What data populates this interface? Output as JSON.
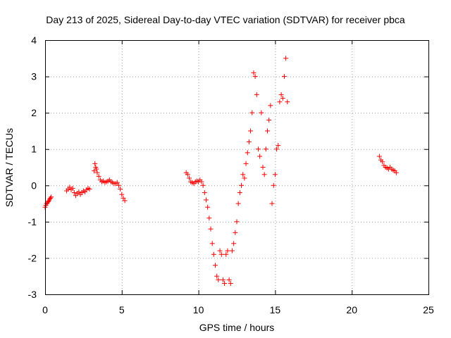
{
  "chart_data": {
    "type": "scatter",
    "title": "Day 213 of 2025, Sidereal Day-to-day VTEC variation (SDTVAR) for receiver pbca",
    "xlabel": "GPS time / hours",
    "ylabel": "SDTVAR / TECUs",
    "xlim": [
      0,
      25
    ],
    "ylim": [
      -3,
      4
    ],
    "xticks": [
      0,
      5,
      10,
      15,
      20,
      25
    ],
    "yticks": [
      -3,
      -2,
      -1,
      0,
      1,
      2,
      3,
      4
    ],
    "xtick_labels": [
      "0",
      "5",
      "10",
      "15",
      "20",
      "25"
    ],
    "ytick_labels": [
      "-3",
      "-2",
      "-1",
      "0",
      "1",
      "2",
      "3",
      "4"
    ],
    "grid": true,
    "marker": "+",
    "color": "#ff0000",
    "series": [
      {
        "name": "SDTVAR",
        "x": [
          0.0,
          0.05,
          0.1,
          0.15,
          0.2,
          0.25,
          0.3,
          0.35,
          0.4,
          1.4,
          1.5,
          1.6,
          1.7,
          1.8,
          1.9,
          2.0,
          2.1,
          2.2,
          2.3,
          2.4,
          2.5,
          2.6,
          2.7,
          2.8,
          2.9,
          3.2,
          3.25,
          3.3,
          3.35,
          3.4,
          3.5,
          3.6,
          3.7,
          3.8,
          3.9,
          4.0,
          4.1,
          4.2,
          4.3,
          4.4,
          4.5,
          4.6,
          4.7,
          4.8,
          4.9,
          5.0,
          5.1,
          5.2,
          9.2,
          9.3,
          9.4,
          9.5,
          9.6,
          9.7,
          9.8,
          9.9,
          10.0,
          10.1,
          10.2,
          10.3,
          10.4,
          10.5,
          10.6,
          10.7,
          10.8,
          10.9,
          11.0,
          11.1,
          11.2,
          11.3,
          11.4,
          11.5,
          11.6,
          11.7,
          11.8,
          11.9,
          12.0,
          12.1,
          12.2,
          12.3,
          12.4,
          12.5,
          12.6,
          12.7,
          12.8,
          12.9,
          13.0,
          13.1,
          13.2,
          13.3,
          13.4,
          13.5,
          13.6,
          13.7,
          13.8,
          13.9,
          14.0,
          14.1,
          14.2,
          14.3,
          14.4,
          14.5,
          14.6,
          14.7,
          14.8,
          14.9,
          15.0,
          15.1,
          15.2,
          15.3,
          15.4,
          15.5,
          15.6,
          15.7,
          15.8,
          21.8,
          21.9,
          22.0,
          22.1,
          22.2,
          22.3,
          22.4,
          22.5,
          22.6,
          22.7,
          22.8,
          22.9
        ],
        "y": [
          -0.6,
          -0.55,
          -0.5,
          -0.48,
          -0.45,
          -0.42,
          -0.38,
          -0.35,
          -0.32,
          -0.15,
          -0.1,
          -0.05,
          -0.12,
          -0.08,
          -0.2,
          -0.28,
          -0.22,
          -0.18,
          -0.25,
          -0.2,
          -0.15,
          -0.18,
          -0.12,
          -0.08,
          -0.1,
          0.4,
          0.6,
          0.5,
          0.45,
          0.35,
          0.25,
          0.15,
          0.1,
          0.12,
          0.08,
          0.1,
          0.12,
          0.15,
          0.1,
          0.08,
          0.05,
          0.05,
          0.08,
          0.0,
          -0.1,
          -0.25,
          -0.35,
          -0.42,
          0.35,
          0.3,
          0.2,
          0.1,
          0.08,
          0.05,
          0.1,
          0.12,
          0.1,
          0.15,
          0.1,
          0.0,
          -0.2,
          -0.4,
          -0.6,
          -0.9,
          -1.2,
          -1.6,
          -1.9,
          -2.2,
          -2.5,
          -2.6,
          -1.8,
          -1.9,
          -2.6,
          -2.7,
          -1.9,
          -1.8,
          -2.6,
          -2.7,
          -1.8,
          -1.6,
          -1.3,
          -1.0,
          -0.5,
          -0.2,
          0.0,
          0.3,
          0.2,
          0.6,
          0.9,
          1.2,
          1.5,
          2.0,
          3.1,
          3.0,
          2.5,
          1.0,
          0.8,
          2.0,
          0.5,
          0.3,
          1.0,
          1.5,
          1.8,
          2.2,
          -0.5,
          0.0,
          0.3,
          1.0,
          1.1,
          2.3,
          2.5,
          2.4,
          3.0,
          3.5,
          2.3,
          0.8,
          0.7,
          0.65,
          0.55,
          0.5,
          0.48,
          0.45,
          0.5,
          0.45,
          0.42,
          0.4,
          0.35
        ]
      }
    ]
  }
}
